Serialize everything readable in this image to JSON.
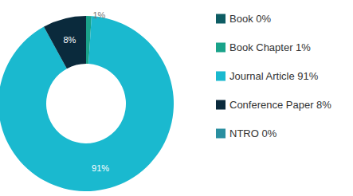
{
  "chart_data": {
    "type": "pie",
    "categories": [
      "Book 0%",
      "Book Chapter 1%",
      "Journal Article 91%",
      "Conference Paper 8%",
      "NTRO 0%"
    ],
    "values": [
      0,
      1,
      91,
      8,
      0
    ],
    "value_labels": [
      null,
      "1%",
      "91%",
      "8%",
      null
    ],
    "colors": [
      "#0d5c63",
      "#1aa38a",
      "#1ab9cf",
      "#0a2a3c",
      "#2a8fa0"
    ],
    "data_labels": true,
    "legend": "right"
  }
}
